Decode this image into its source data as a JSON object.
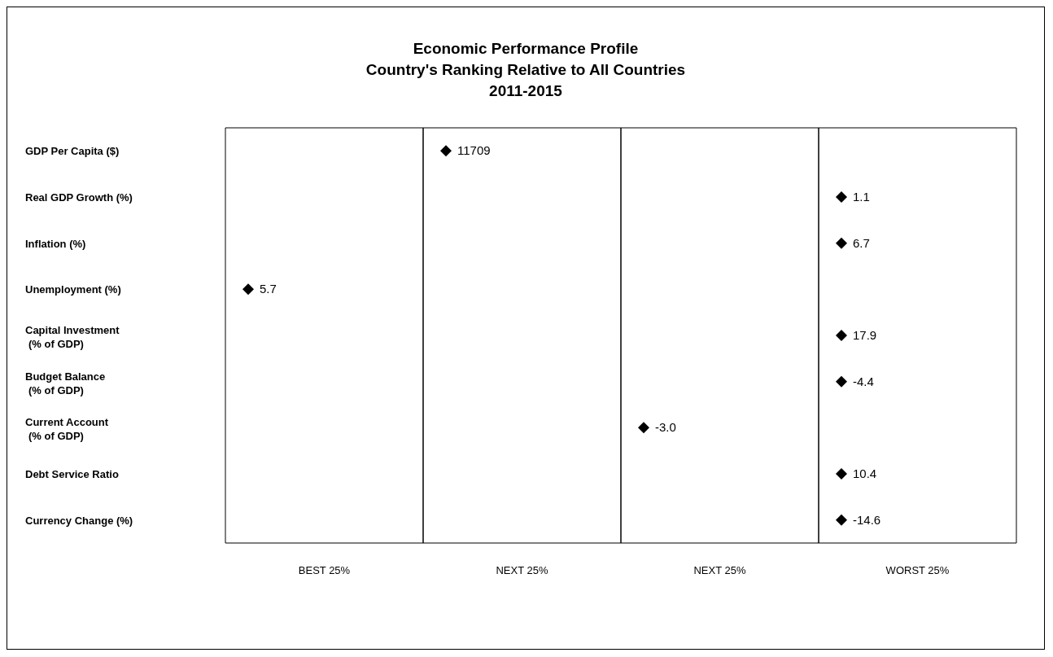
{
  "chart_data": {
    "type": "heatmap",
    "title": "Economic Performance Profile\nCountry's Ranking Relative to All Countries\n2011-2015",
    "categories": [
      "BEST 25%",
      "NEXT 25%",
      "NEXT 25%",
      "WORST 25%"
    ],
    "y_categories": [
      "GDP Per Capita ($)",
      "Real GDP Growth (%)",
      "Inflation (%)",
      "Unemployment (%)",
      "Capital Investment\n(% of GDP)",
      "Budget Balance\n(% of GDP)",
      "Current Account\n(% of GDP)",
      "Debt Service Ratio",
      "Currency Change (%)"
    ],
    "cells": [
      [
        null,
        11709,
        null,
        null
      ],
      [
        null,
        null,
        null,
        1.1
      ],
      [
        null,
        null,
        null,
        6.7
      ],
      [
        5.7,
        null,
        null,
        null
      ],
      [
        null,
        null,
        null,
        17.9
      ],
      [
        null,
        null,
        null,
        -4.4
      ],
      [
        null,
        null,
        -3,
        null
      ],
      [
        null,
        null,
        null,
        10.4
      ],
      [
        null,
        null,
        null,
        -14.6
      ]
    ],
    "cell_labels": [
      [
        null,
        "11709",
        null,
        null
      ],
      [
        null,
        null,
        null,
        "1.1"
      ],
      [
        null,
        null,
        null,
        "6.7"
      ],
      [
        "5.7",
        null,
        null,
        null
      ],
      [
        null,
        null,
        null,
        "17.9"
      ],
      [
        null,
        null,
        null,
        "-4.4"
      ],
      [
        null,
        null,
        "-3.0",
        null
      ],
      [
        null,
        null,
        null,
        "10.4"
      ],
      [
        null,
        null,
        null,
        "-14.6"
      ]
    ],
    "marker": "diamond"
  }
}
